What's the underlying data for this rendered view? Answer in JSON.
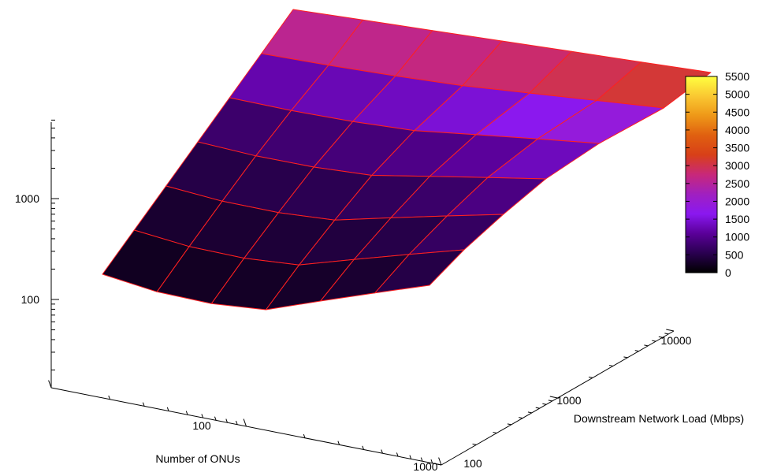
{
  "chart_data": {
    "type": "surface",
    "title": "",
    "xlabel": "Number of ONUs",
    "ylabel": "Downstream Network Load (Mbps)",
    "zlabel": "",
    "x_scale": "log",
    "y_scale": "log",
    "z_scale": "log",
    "x_ticks": [
      "100",
      "1000"
    ],
    "y_ticks": [
      "100",
      "1000",
      "10000"
    ],
    "z_ticks": [
      "100",
      "1000"
    ],
    "colorbar": {
      "min": 0,
      "max": 5500,
      "ticks": [
        "0",
        "500",
        "1000",
        "1500",
        "2000",
        "2500",
        "3000",
        "3500",
        "4000",
        "4500",
        "5000",
        "5500"
      ]
    },
    "mesh_color": "#ff2020",
    "palette": [
      "#000000",
      "#2a0050",
      "#5a0099",
      "#8a18f0",
      "#a020c0",
      "#c8287a",
      "#d84018",
      "#e06010",
      "#ee9818",
      "#fac832",
      "#ffff40"
    ],
    "surface_values": [
      [
        180,
        260,
        370,
        570,
        900,
        1500,
        3600
      ],
      [
        190,
        280,
        400,
        600,
        950,
        1550,
        3650
      ],
      [
        200,
        300,
        430,
        650,
        1000,
        1600,
        3700
      ],
      [
        220,
        330,
        480,
        700,
        1100,
        1700,
        3800
      ],
      [
        240,
        370,
        540,
        800,
        1250,
        1900,
        3900
      ],
      [
        300,
        450,
        650,
        950,
        1450,
        2100,
        4000
      ],
      [
        500,
        700,
        900,
        1200,
        1700,
        2300,
        4100
      ]
    ]
  }
}
